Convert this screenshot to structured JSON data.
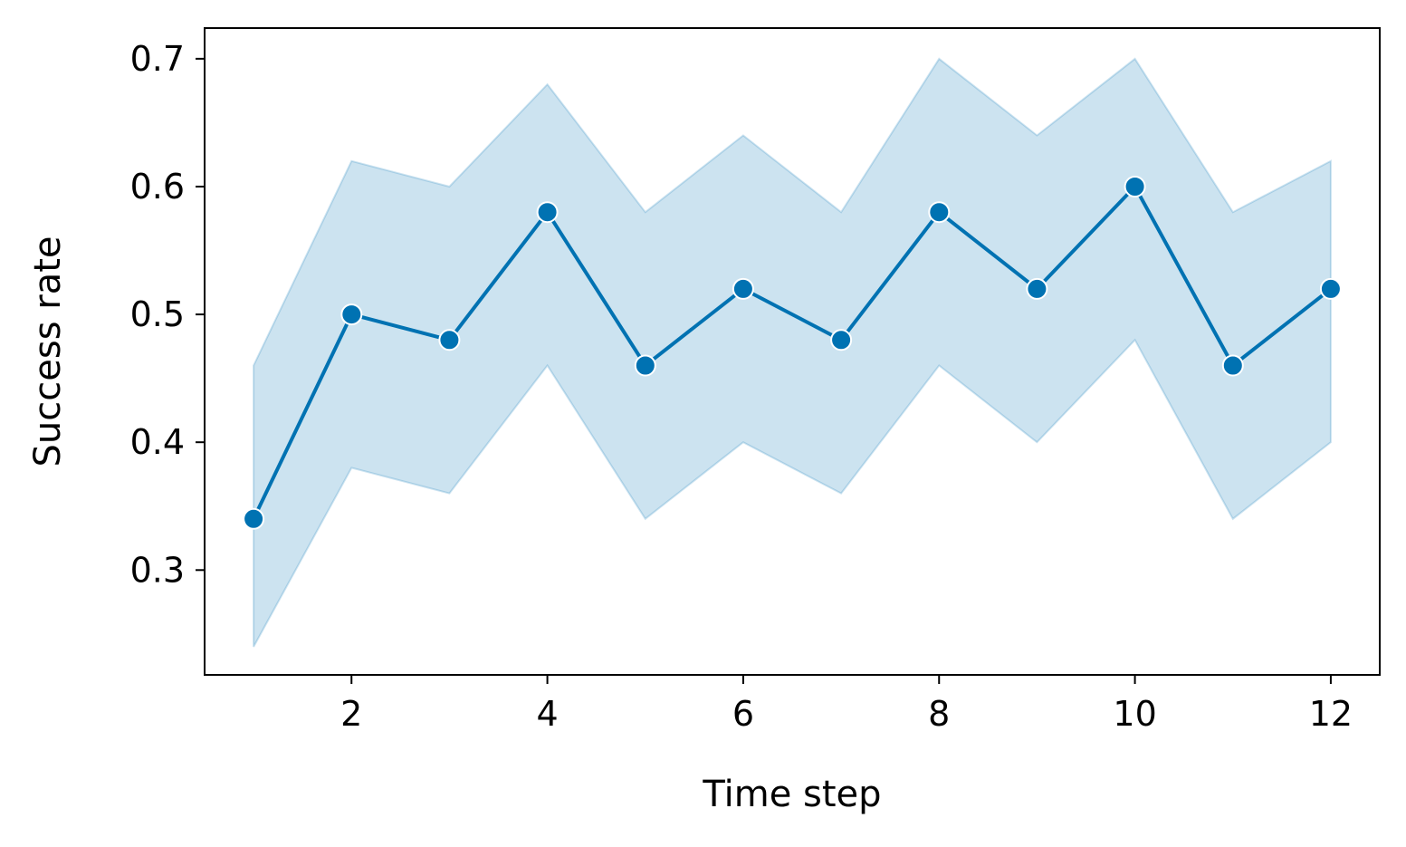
{
  "chart_data": {
    "type": "line",
    "title": "",
    "xlabel": "Time step",
    "ylabel": "Success rate",
    "xlim": [
      0.5,
      12.5
    ],
    "ylim": [
      0.218,
      0.724
    ],
    "xticks": [
      2,
      4,
      6,
      8,
      10,
      12
    ],
    "xtick_labels": [
      "2",
      "4",
      "6",
      "8",
      "10",
      "12"
    ],
    "yticks": [
      0.3,
      0.4,
      0.5,
      0.6,
      0.7
    ],
    "ytick_labels": [
      "0.3",
      "0.4",
      "0.5",
      "0.6",
      "0.7"
    ],
    "grid": false,
    "legend": "none",
    "series": [
      {
        "x": [
          1,
          2,
          3,
          4,
          5,
          6,
          7,
          8,
          9,
          10,
          11,
          12
        ],
        "values": [
          0.34,
          0.5,
          0.48,
          0.58,
          0.46,
          0.52,
          0.48,
          0.58,
          0.52,
          0.6,
          0.46,
          0.52
        ],
        "lower": [
          0.24,
          0.38,
          0.36,
          0.46,
          0.34,
          0.4,
          0.36,
          0.46,
          0.4,
          0.48,
          0.34,
          0.4
        ],
        "upper": [
          0.46,
          0.62,
          0.6,
          0.68,
          0.58,
          0.64,
          0.58,
          0.7,
          0.64,
          0.7,
          0.58,
          0.62
        ],
        "color": "#0072b2",
        "band_color": "#0072b2"
      }
    ]
  }
}
